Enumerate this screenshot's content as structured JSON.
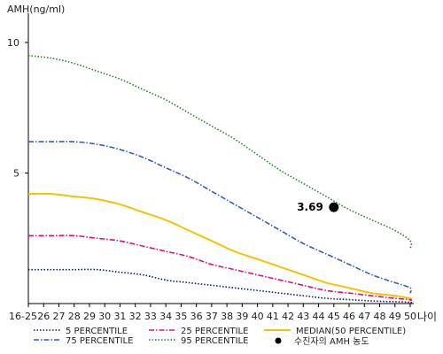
{
  "chart_data": {
    "type": "line",
    "ylabel": "AMH(ng/ml)",
    "xlabel": "나이",
    "x_ticks": [
      "16-25",
      "26",
      "27",
      "28",
      "29",
      "30",
      "31",
      "32",
      "33",
      "34",
      "35",
      "36",
      "37",
      "38",
      "39",
      "40",
      "41",
      "42",
      "43",
      "44",
      "45",
      "46",
      "47",
      "48",
      "49",
      "50"
    ],
    "y_ticks": [
      5,
      10
    ],
    "ylim": [
      0,
      11
    ],
    "series": [
      {
        "name": "95 PERCENTILE",
        "color": "#2e7d32",
        "dash": "dot",
        "values": [
          9.5,
          9.4,
          9.2,
          8.9,
          8.6,
          8.2,
          7.8,
          7.3,
          6.8,
          6.3,
          5.7,
          5.1,
          4.6,
          4.1,
          3.6,
          3.2,
          2.8,
          2.4,
          2.1
        ]
      },
      {
        "name": "75 PERCENTILE",
        "color": "#2f5fbf",
        "dash": "dashdot",
        "values": [
          6.2,
          6.2,
          6.2,
          6.1,
          5.9,
          5.6,
          5.2,
          4.8,
          4.3,
          3.8,
          3.3,
          2.8,
          2.3,
          1.9,
          1.5,
          1.1,
          0.8,
          0.6,
          0.4
        ]
      },
      {
        "name": "MEDIAN(50 PERCENTILE)",
        "color": "#f2c500",
        "dash": "solid",
        "values": [
          4.2,
          4.2,
          4.1,
          4.0,
          3.8,
          3.5,
          3.2,
          2.8,
          2.4,
          2.0,
          1.7,
          1.4,
          1.1,
          0.8,
          0.6,
          0.4,
          0.3,
          0.2,
          0.2
        ]
      },
      {
        "name": "25 PERCENTILE",
        "color": "#e0107a",
        "dash": "dashdot",
        "values": [
          2.6,
          2.6,
          2.6,
          2.5,
          2.4,
          2.2,
          2.0,
          1.8,
          1.5,
          1.3,
          1.1,
          0.9,
          0.7,
          0.5,
          0.4,
          0.3,
          0.2,
          0.15,
          0.1
        ]
      },
      {
        "name": "5 PERCENTILE",
        "color": "#0a1a70",
        "dash": "dot",
        "values": [
          1.3,
          1.3,
          1.3,
          1.3,
          1.2,
          1.1,
          0.9,
          0.8,
          0.7,
          0.6,
          0.5,
          0.4,
          0.3,
          0.2,
          0.15,
          0.1,
          0.07,
          0.05,
          0.03
        ]
      }
    ],
    "series_x_index": [
      0,
      1.5,
      3,
      4.5,
      6,
      7.5,
      9,
      10.5,
      12,
      13.5,
      15,
      16.5,
      18,
      19.5,
      21,
      22.5,
      24,
      25,
      25
    ],
    "annotation": {
      "x": "45",
      "y": 3.69,
      "label": "3.69",
      "legend": "수진자의 AMH 농도"
    },
    "legend_position": "bottom"
  }
}
